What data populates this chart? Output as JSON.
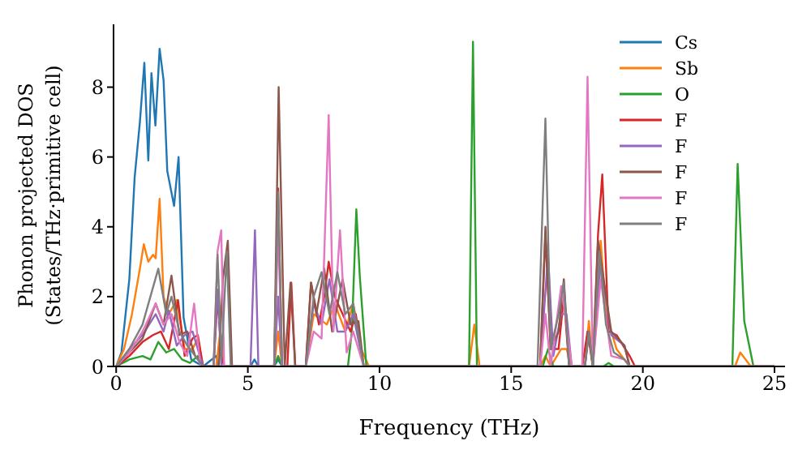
{
  "chart_data": {
    "type": "line",
    "xlabel": "Frequency (THz)",
    "ylabel": "Phonon projected DOS\n(States/THz·primitive cell)",
    "xlim": [
      -0.1,
      25.4
    ],
    "ylim": [
      0,
      9.8
    ],
    "xticks": [
      0,
      5,
      10,
      15,
      20,
      25
    ],
    "yticks": [
      0,
      2,
      4,
      6,
      8
    ],
    "grid": false,
    "legend": "top right",
    "marker": "none",
    "line_style": "solid",
    "series": [
      {
        "name": "Cs",
        "color": "#1f77b4",
        "x": [
          0,
          0.2,
          0.5,
          0.7,
          0.9,
          1.07,
          1.22,
          1.34,
          1.49,
          1.65,
          1.8,
          1.94,
          2.2,
          2.37,
          2.56,
          2.85,
          3.3,
          3.8,
          3.9,
          4.1,
          5.1,
          5.25,
          5.4,
          6.0,
          6.15,
          6.3,
          25
        ],
        "values": [
          0,
          0.4,
          2.5,
          5.4,
          7.0,
          8.7,
          5.9,
          8.4,
          6.9,
          9.1,
          8.2,
          5.6,
          4.6,
          6.0,
          1.4,
          0.2,
          0,
          0.3,
          0,
          0,
          0,
          0.2,
          0,
          0,
          0.2,
          0,
          0
        ]
      },
      {
        "name": "Sb",
        "color": "#ff7f0e",
        "x": [
          0,
          0.3,
          0.6,
          0.9,
          1.05,
          1.22,
          1.4,
          1.5,
          1.65,
          1.8,
          2.0,
          2.3,
          2.6,
          2.9,
          3.1,
          3.3,
          3.8,
          3.95,
          4.1,
          6.0,
          6.15,
          6.3,
          7.2,
          7.5,
          8.0,
          8.3,
          8.7,
          9.0,
          9.3,
          9.6,
          13.4,
          13.6,
          13.8,
          16.1,
          16.3,
          16.5,
          16.9,
          17.1,
          17.3,
          17.8,
          17.95,
          18.1,
          18.4,
          18.6,
          19.0,
          19.5,
          23.5,
          23.7,
          24.1,
          25
        ],
        "values": [
          0,
          0.5,
          1.5,
          2.8,
          3.5,
          3.0,
          3.2,
          3.1,
          4.8,
          2.0,
          1.5,
          1.9,
          0.5,
          0.5,
          0.8,
          0,
          0,
          1.0,
          0,
          0,
          1.0,
          0,
          0,
          1.5,
          1.2,
          1.8,
          1.0,
          1.8,
          0.5,
          0,
          0,
          1.2,
          0,
          0,
          0.3,
          0,
          0.5,
          0.5,
          0,
          0,
          1.3,
          0,
          3.6,
          1.5,
          0.5,
          0,
          0,
          0.4,
          0,
          0
        ]
      },
      {
        "name": "O",
        "color": "#2ca02c",
        "x": [
          0,
          0.5,
          1.0,
          1.3,
          1.6,
          1.9,
          2.2,
          2.5,
          2.8,
          3.1,
          3.3,
          6.0,
          6.15,
          6.3,
          8.8,
          8.95,
          9.12,
          9.25,
          9.5,
          13.4,
          13.55,
          13.7,
          16.2,
          16.4,
          16.6,
          18.5,
          18.7,
          18.9,
          23.4,
          23.6,
          23.85,
          24.2,
          25
        ],
        "values": [
          0,
          0.2,
          0.3,
          0.2,
          0.7,
          0.4,
          0.5,
          0.2,
          0.1,
          0.3,
          0,
          0,
          0.3,
          0,
          0,
          1.0,
          4.5,
          2.6,
          0,
          0,
          9.3,
          0,
          0,
          0.5,
          0,
          0,
          0.1,
          0,
          0,
          5.8,
          1.3,
          0,
          0
        ]
      },
      {
        "name": "F",
        "color": "#d62728",
        "x": [
          0,
          0.5,
          1.0,
          1.4,
          1.7,
          2.0,
          2.35,
          2.6,
          2.9,
          3.1,
          3.3,
          3.7,
          3.85,
          4.0,
          4.1,
          6.0,
          6.15,
          6.3,
          6.5,
          6.65,
          6.8,
          7.2,
          7.4,
          7.7,
          7.9,
          8.07,
          8.3,
          8.6,
          8.9,
          9.1,
          9.4,
          16.1,
          16.3,
          16.5,
          16.8,
          17.0,
          17.2,
          17.7,
          17.9,
          18.1,
          18.3,
          18.46,
          18.7,
          19.0,
          19.5,
          19.7,
          25
        ],
        "values": [
          0,
          0.3,
          0.7,
          0.9,
          1.0,
          0.5,
          1.9,
          0.3,
          0.8,
          0.9,
          0,
          0,
          2.0,
          0.3,
          0,
          0,
          5.1,
          0,
          0,
          2.4,
          0,
          0,
          2.4,
          1.2,
          2.0,
          3.0,
          2.0,
          1.5,
          1.0,
          1.5,
          0,
          0,
          3.8,
          0.5,
          0.5,
          2.0,
          0,
          0,
          1.0,
          0,
          3.8,
          5.5,
          1.0,
          0.9,
          0.3,
          0,
          0
        ]
      },
      {
        "name": "F",
        "color": "#9467bd",
        "x": [
          0,
          0.5,
          1.0,
          1.5,
          1.8,
          2.0,
          2.3,
          2.6,
          2.9,
          3.3,
          3.7,
          3.85,
          4.0,
          5.1,
          5.27,
          5.4,
          6.0,
          6.15,
          6.3,
          7.2,
          7.5,
          7.8,
          8.1,
          8.4,
          8.7,
          9.0,
          9.4,
          16.1,
          16.4,
          16.6,
          16.9,
          17.1,
          17.3,
          17.8,
          17.95,
          18.1,
          18.4,
          18.8,
          19.3,
          19.5,
          25
        ],
        "values": [
          0,
          0.5,
          0.9,
          1.5,
          1.0,
          1.6,
          0.6,
          0.9,
          1.0,
          0,
          0,
          2.2,
          0,
          0,
          3.9,
          0,
          0,
          2.0,
          0,
          0,
          1.8,
          1.2,
          2.5,
          1.0,
          1.0,
          1.5,
          0,
          0,
          3.2,
          0.3,
          1.5,
          1.5,
          0,
          0,
          1.0,
          0,
          3.0,
          0.9,
          0.6,
          0,
          0
        ]
      },
      {
        "name": "F",
        "color": "#8c564b",
        "x": [
          0,
          0.5,
          1.0,
          1.5,
          1.8,
          2.1,
          2.4,
          2.7,
          3.0,
          3.3,
          3.9,
          4.05,
          4.24,
          4.4,
          6.0,
          6.17,
          6.4,
          6.62,
          6.8,
          7.2,
          7.4,
          7.6,
          7.9,
          8.2,
          8.6,
          8.9,
          9.2,
          9.4,
          16.1,
          16.3,
          16.5,
          16.8,
          17.0,
          17.2,
          17.8,
          17.95,
          18.1,
          18.3,
          18.8,
          19.3,
          19.5,
          25
        ],
        "values": [
          0,
          0.4,
          0.8,
          1.8,
          1.2,
          2.6,
          0.9,
          1.0,
          0.3,
          0,
          0,
          2.5,
          3.6,
          0,
          0,
          8.0,
          0,
          2.4,
          0,
          0,
          2.4,
          1.5,
          2.8,
          1.0,
          2.5,
          1.2,
          1.3,
          0,
          0,
          4.0,
          0.5,
          1.0,
          2.5,
          0,
          0,
          1.0,
          0,
          3.6,
          1.0,
          0.6,
          0,
          0
        ]
      },
      {
        "name": "F",
        "color": "#e377c2",
        "x": [
          0,
          0.5,
          1.0,
          1.5,
          1.8,
          2.1,
          2.4,
          2.7,
          2.96,
          3.2,
          3.7,
          3.85,
          3.99,
          4.1,
          6.0,
          6.15,
          6.3,
          7.2,
          7.5,
          7.8,
          8.07,
          8.25,
          8.5,
          8.75,
          9.0,
          9.4,
          16.1,
          16.3,
          16.5,
          16.9,
          17.1,
          17.3,
          17.7,
          17.9,
          18.1,
          18.4,
          18.8,
          19.3,
          19.5,
          25
        ],
        "values": [
          0,
          0.4,
          1.0,
          1.8,
          1.2,
          1.5,
          0.7,
          0.3,
          1.8,
          0,
          0,
          3.3,
          3.9,
          0,
          0,
          4.0,
          0,
          0,
          1.0,
          0.8,
          7.2,
          1.0,
          3.9,
          0.4,
          1.0,
          0,
          0,
          1.5,
          0,
          2.3,
          1.2,
          0,
          0,
          8.3,
          0,
          2.5,
          0.3,
          0.2,
          0,
          0
        ]
      },
      {
        "name": "F",
        "color": "#7f7f7f",
        "x": [
          0,
          0.5,
          1.0,
          1.3,
          1.6,
          1.9,
          2.1,
          2.4,
          2.7,
          3.0,
          3.3,
          3.7,
          3.85,
          4.0,
          4.2,
          4.35,
          6.0,
          6.15,
          6.3,
          7.2,
          7.5,
          7.8,
          8.1,
          8.4,
          8.7,
          9.0,
          9.4,
          16.0,
          16.3,
          16.5,
          16.8,
          17.0,
          17.2,
          17.8,
          17.95,
          18.1,
          18.35,
          18.6,
          18.9,
          19.3,
          19.5,
          25
        ],
        "values": [
          0,
          0.5,
          1.2,
          2.0,
          2.8,
          1.5,
          2.0,
          1.0,
          0.6,
          0.3,
          0,
          0,
          3.2,
          0.2,
          3.3,
          0,
          0,
          5.0,
          0,
          0,
          2.0,
          2.7,
          1.5,
          2.7,
          1.5,
          1.8,
          0,
          0,
          7.1,
          0.5,
          1.5,
          2.4,
          0,
          0,
          1.0,
          0,
          3.3,
          1.2,
          0.4,
          0.2,
          0,
          0
        ]
      }
    ]
  }
}
